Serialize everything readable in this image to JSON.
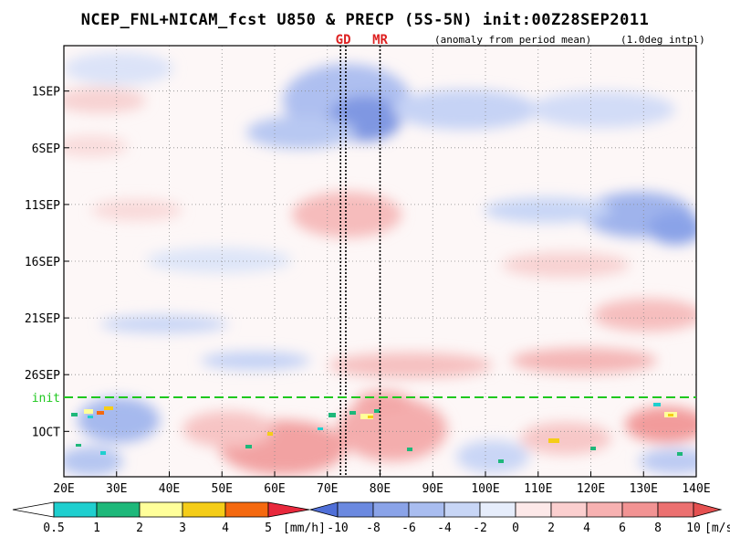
{
  "chart_data": {
    "type": "heatmap",
    "title": "NCEP_FNL+NICAM_fcst U850 & PRECP (5S-5N) init:00Z28SEP2011",
    "subtitle_left": "(anomaly from period mean)",
    "subtitle_right": "(1.0deg intpl)",
    "x_ticks": [
      "20E",
      "30E",
      "40E",
      "50E",
      "60E",
      "70E",
      "80E",
      "90E",
      "100E",
      "110E",
      "120E",
      "130E",
      "140E"
    ],
    "x_values": [
      20,
      30,
      40,
      50,
      60,
      70,
      80,
      90,
      100,
      110,
      120,
      130,
      140
    ],
    "xlim": [
      20,
      140
    ],
    "y_ticks": [
      "1SEP",
      "6SEP",
      "11SEP",
      "16SEP",
      "21SEP",
      "26SEP",
      "1OCT"
    ],
    "y_values": [
      "2011-09-01",
      "2011-09-06",
      "2011-09-11",
      "2011-09-16",
      "2011-09-21",
      "2011-09-26",
      "2011-10-01"
    ],
    "ylim": [
      "2011-08-28",
      "2011-10-05"
    ],
    "init_label": "init",
    "init_date": "2011-09-28",
    "markers": [
      {
        "label": "GD",
        "lons": [
          72.5,
          73.5
        ]
      },
      {
        "label": "MR",
        "lons": [
          80
        ]
      }
    ],
    "precip_colorbar": {
      "levels": [
        "0.5",
        "1",
        "2",
        "3",
        "4",
        "5"
      ],
      "unit": "[mm/h]",
      "colors": [
        "#ffffff",
        "#1fcfcf",
        "#1eb87a",
        "#ffff9a",
        "#f5cd18",
        "#f5690f",
        "#e8283c"
      ]
    },
    "u850_colorbar": {
      "levels": [
        "-10",
        "-8",
        "-6",
        "-4",
        "-2",
        "0",
        "2",
        "4",
        "6",
        "8",
        "10"
      ],
      "unit": "[m/s]",
      "colors": [
        "#4f6fd8",
        "#6b89e0",
        "#8aa3e8",
        "#a9bdf0",
        "#c8d6f6",
        "#e6edfb",
        "#fde9e9",
        "#fbcfcf",
        "#f7b1b1",
        "#f29393",
        "#ec7070",
        "#e55050"
      ]
    }
  }
}
